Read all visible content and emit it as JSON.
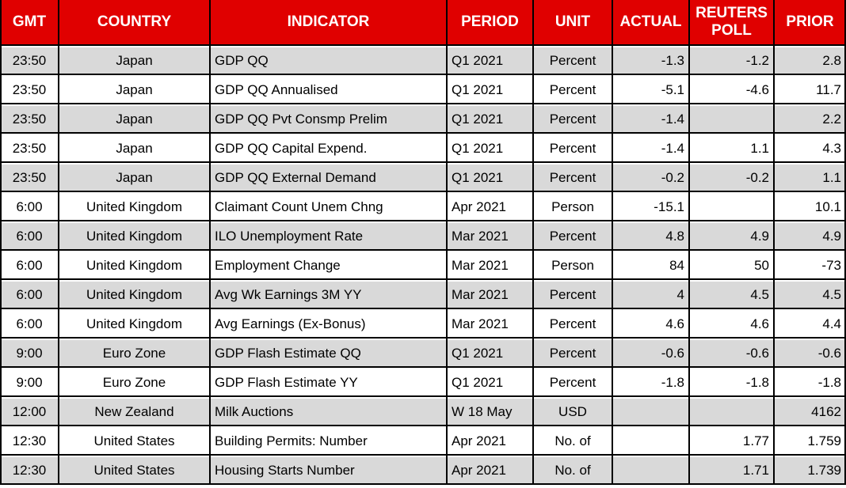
{
  "chart_data": {
    "type": "table",
    "columns": [
      {
        "key": "gmt",
        "label": "GMT",
        "align": "center"
      },
      {
        "key": "country",
        "label": "COUNTRY",
        "align": "center"
      },
      {
        "key": "indicator",
        "label": "INDICATOR",
        "align": "left"
      },
      {
        "key": "period",
        "label": "PERIOD",
        "align": "left"
      },
      {
        "key": "unit",
        "label": "UNIT",
        "align": "center"
      },
      {
        "key": "actual",
        "label": "ACTUAL",
        "align": "right"
      },
      {
        "key": "reuters_poll",
        "label": "REUTERS POLL",
        "align": "right"
      },
      {
        "key": "prior",
        "label": "PRIOR",
        "align": "right"
      }
    ],
    "rows": [
      {
        "gmt": "23:50",
        "country": "Japan",
        "indicator": "GDP QQ",
        "period": "Q1 2021",
        "unit": "Percent",
        "actual": "-1.3",
        "reuters_poll": "-1.2",
        "prior": "2.8"
      },
      {
        "gmt": "23:50",
        "country": "Japan",
        "indicator": "GDP QQ Annualised",
        "period": "Q1 2021",
        "unit": "Percent",
        "actual": "-5.1",
        "reuters_poll": "-4.6",
        "prior": "11.7"
      },
      {
        "gmt": "23:50",
        "country": "Japan",
        "indicator": "GDP QQ Pvt Consmp Prelim",
        "period": "Q1 2021",
        "unit": "Percent",
        "actual": "-1.4",
        "reuters_poll": "",
        "prior": "2.2"
      },
      {
        "gmt": "23:50",
        "country": "Japan",
        "indicator": "GDP QQ Capital Expend.",
        "period": "Q1 2021",
        "unit": "Percent",
        "actual": "-1.4",
        "reuters_poll": "1.1",
        "prior": "4.3"
      },
      {
        "gmt": "23:50",
        "country": "Japan",
        "indicator": "GDP QQ External Demand",
        "period": "Q1 2021",
        "unit": "Percent",
        "actual": "-0.2",
        "reuters_poll": "-0.2",
        "prior": "1.1"
      },
      {
        "gmt": "6:00",
        "country": "United Kingdom",
        "indicator": "Claimant Count Unem Chng",
        "period": "Apr 2021",
        "unit": "Person",
        "actual": "-15.1",
        "reuters_poll": "",
        "prior": "10.1"
      },
      {
        "gmt": "6:00",
        "country": "United Kingdom",
        "indicator": "ILO Unemployment Rate",
        "period": "Mar 2021",
        "unit": "Percent",
        "actual": "4.8",
        "reuters_poll": "4.9",
        "prior": "4.9"
      },
      {
        "gmt": "6:00",
        "country": "United Kingdom",
        "indicator": "Employment Change",
        "period": "Mar 2021",
        "unit": "Person",
        "actual": "84",
        "reuters_poll": "50",
        "prior": "-73"
      },
      {
        "gmt": "6:00",
        "country": "United Kingdom",
        "indicator": "Avg Wk Earnings 3M YY",
        "period": "Mar 2021",
        "unit": "Percent",
        "actual": "4",
        "reuters_poll": "4.5",
        "prior": "4.5"
      },
      {
        "gmt": "6:00",
        "country": "United Kingdom",
        "indicator": "Avg Earnings (Ex-Bonus)",
        "period": "Mar 2021",
        "unit": "Percent",
        "actual": "4.6",
        "reuters_poll": "4.6",
        "prior": "4.4"
      },
      {
        "gmt": "9:00",
        "country": "Euro Zone",
        "indicator": "GDP Flash Estimate QQ",
        "period": "Q1 2021",
        "unit": "Percent",
        "actual": "-0.6",
        "reuters_poll": "-0.6",
        "prior": "-0.6"
      },
      {
        "gmt": "9:00",
        "country": "Euro Zone",
        "indicator": "GDP Flash Estimate YY",
        "period": "Q1 2021",
        "unit": "Percent",
        "actual": "-1.8",
        "reuters_poll": "-1.8",
        "prior": "-1.8"
      },
      {
        "gmt": "12:00",
        "country": "New Zealand",
        "indicator": "Milk Auctions",
        "period": "W 18 May",
        "unit": "USD",
        "actual": "",
        "reuters_poll": "",
        "prior": "4162"
      },
      {
        "gmt": "12:30",
        "country": "United States",
        "indicator": "Building Permits: Number",
        "period": "Apr 2021",
        "unit": "No. of",
        "actual": "",
        "reuters_poll": "1.77",
        "prior": "1.759"
      },
      {
        "gmt": "12:30",
        "country": "United States",
        "indicator": "Housing Starts Number",
        "period": "Apr 2021",
        "unit": "No. of",
        "actual": "",
        "reuters_poll": "1.71",
        "prior": "1.739"
      }
    ],
    "layout": {
      "grid": "on",
      "alternating_rows": "first_row_shaded",
      "legend": "none"
    },
    "style": {
      "header_bg": "#e00000",
      "header_text": "#ffffff",
      "alt_row_bg": "#d9d9d9",
      "row_bg": "#ffffff",
      "border_color": "#000000",
      "text_color": "#000000"
    }
  }
}
